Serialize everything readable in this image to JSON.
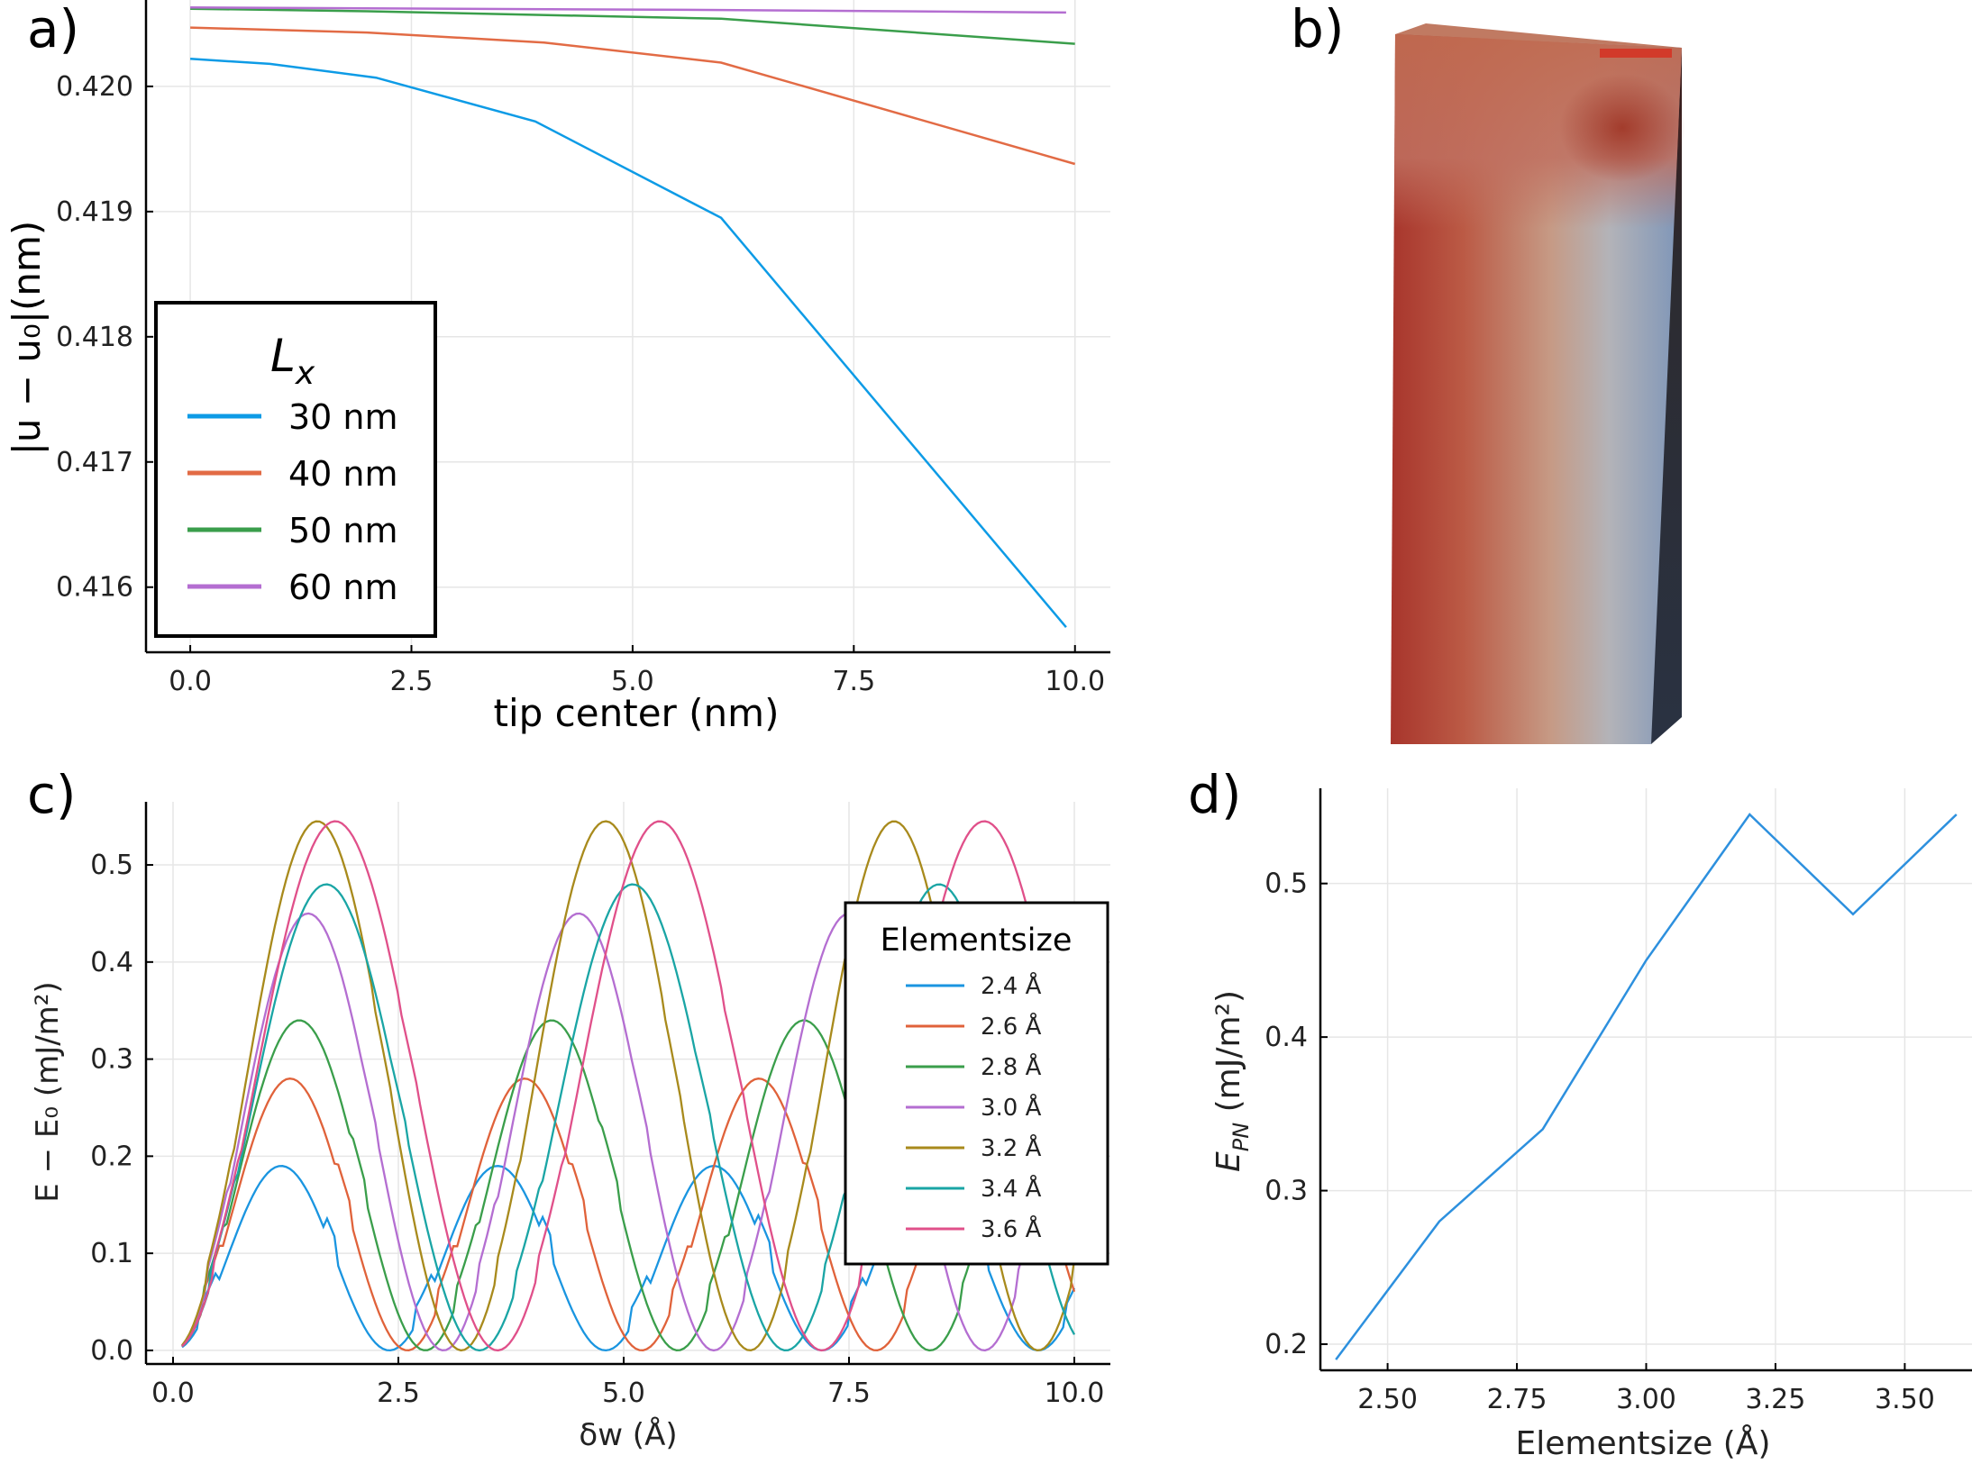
{
  "panels": {
    "a": "a)",
    "b": "b)",
    "c": "c)",
    "d": "d)"
  },
  "chart_data": [
    {
      "id": "a",
      "type": "line",
      "xlabel": "tip center (nm)",
      "ylabel": "|u − u₀|(nm)",
      "xlim": [
        -0.5,
        10.4
      ],
      "ylim": [
        0.41548,
        0.42069
      ],
      "xticks": [
        "0.0",
        "2.5",
        "5.0",
        "7.5",
        "10.0"
      ],
      "xtick_values": [
        0,
        2.5,
        5,
        7.5,
        10
      ],
      "yticks": [
        "0.420",
        "0.419",
        "0.418",
        "0.417",
        "0.416"
      ],
      "ytick_values": [
        0.42,
        0.419,
        0.418,
        0.417,
        0.416
      ],
      "grid": true,
      "legend": {
        "title": "L",
        "title_sub": "x",
        "position": "bottom-left"
      },
      "series": [
        {
          "name": "30 nm",
          "color": "#0d9be6",
          "x": [
            0,
            0.9,
            2.1,
            3.9,
            6.0,
            9.9
          ],
          "y": [
            0.42022,
            0.42018,
            0.42007,
            0.41972,
            0.41895,
            0.41568
          ]
        },
        {
          "name": "40 nm",
          "color": "#e26b45",
          "x": [
            0,
            2.0,
            4.0,
            6.0,
            10.0
          ],
          "y": [
            0.42047,
            0.42043,
            0.42035,
            0.42019,
            0.41938
          ]
        },
        {
          "name": "50 nm",
          "color": "#3a9e4b",
          "x": [
            0,
            2.0,
            6.0,
            10.0
          ],
          "y": [
            0.42062,
            0.4206,
            0.42054,
            0.42034
          ]
        },
        {
          "name": "60 nm",
          "color": "#b46ed1",
          "x": [
            0,
            6.0,
            9.9
          ],
          "y": [
            0.42063,
            0.42061,
            0.42059
          ]
        }
      ]
    },
    {
      "id": "c",
      "type": "line",
      "xlabel": "δw (Å)",
      "ylabel": "E − E₀ (mJ/m²)",
      "xlim": [
        -0.3,
        10.4
      ],
      "ylim": [
        -0.014,
        0.565
      ],
      "xticks": [
        "0.0",
        "2.5",
        "5.0",
        "7.5",
        "10.0"
      ],
      "xtick_values": [
        0,
        2.5,
        5,
        7.5,
        10
      ],
      "yticks": [
        "0.0",
        "0.1",
        "0.2",
        "0.3",
        "0.4",
        "0.5"
      ],
      "ytick_values": [
        0,
        0.1,
        0.2,
        0.3,
        0.4,
        0.5
      ],
      "grid": true,
      "legend": {
        "title": "Elementsize",
        "position": "right"
      },
      "series": [
        {
          "name": "2.4 Å",
          "color": "#1a95e0",
          "period": 2.4,
          "amplitude": 0.19
        },
        {
          "name": "2.6 Å",
          "color": "#e0623a",
          "period": 2.6,
          "amplitude": 0.28
        },
        {
          "name": "2.8 Å",
          "color": "#3a9e4b",
          "period": 2.8,
          "amplitude": 0.34
        },
        {
          "name": "3.0 Å",
          "color": "#b46ed1",
          "period": 3.0,
          "amplitude": 0.45
        },
        {
          "name": "3.2 Å",
          "color": "#a88a1c",
          "period": 3.2,
          "amplitude": 0.545
        },
        {
          "name": "3.4 Å",
          "color": "#1aa5a5",
          "period": 3.4,
          "amplitude": 0.48
        },
        {
          "name": "3.6 Å",
          "color": "#e0508a",
          "period": 3.6,
          "amplitude": 0.545
        }
      ]
    },
    {
      "id": "d",
      "type": "line",
      "xlabel": "Elementsize (Å)",
      "ylabel": "E",
      "ylabel_sub": "PN",
      "ylabel_unit": " (mJ/m²)",
      "xlim": [
        2.37,
        3.63
      ],
      "ylim": [
        0.183,
        0.562
      ],
      "xticks": [
        "2.50",
        "2.75",
        "3.00",
        "3.25",
        "3.50"
      ],
      "xtick_values": [
        2.5,
        2.75,
        3.0,
        3.25,
        3.5
      ],
      "yticks": [
        "0.2",
        "0.3",
        "0.4",
        "0.5"
      ],
      "ytick_values": [
        0.2,
        0.3,
        0.4,
        0.5
      ],
      "grid": true,
      "series": [
        {
          "color": "#2d90de",
          "x": [
            2.4,
            2.6,
            2.8,
            3.0,
            3.2,
            3.4,
            3.6
          ],
          "y": [
            0.19,
            0.28,
            0.34,
            0.45,
            0.545,
            0.48,
            0.545
          ]
        }
      ]
    }
  ]
}
